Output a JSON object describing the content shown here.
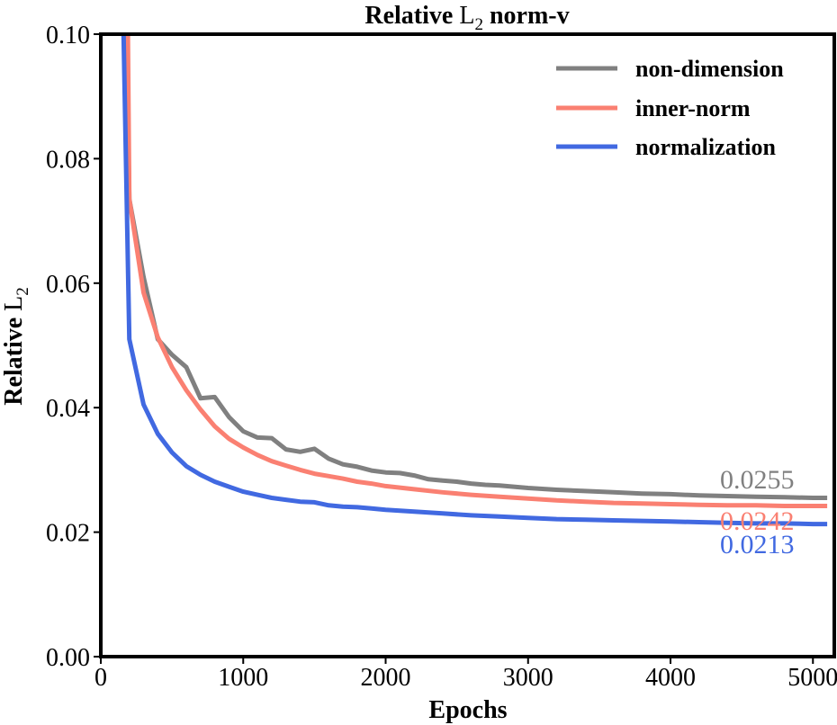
{
  "chart_data": {
    "type": "line",
    "title_prefix": "Relative ",
    "title_symbol": "L",
    "title_subscript": "2",
    "title_suffix": " norm-v",
    "xlabel": "Epochs",
    "ylabel_prefix": "Relative ",
    "ylabel_symbol": "L",
    "ylabel_subscript": "2",
    "xlim": [
      0,
      5150
    ],
    "ylim": [
      0,
      0.1
    ],
    "x_ticks": [
      0,
      1000,
      2000,
      3000,
      4000,
      5000
    ],
    "x_tick_labels": [
      "0",
      "1000",
      "2000",
      "3000",
      "4000",
      "5000"
    ],
    "y_ticks": [
      0,
      0.02,
      0.04,
      0.06,
      0.08,
      0.1
    ],
    "y_tick_labels": [
      "0.00",
      "0.02",
      "0.04",
      "0.06",
      "0.08",
      "0.10"
    ],
    "legend_position": "top-right",
    "series": [
      {
        "name": "non-dimension",
        "color": "#808080",
        "end_label": "0.0255",
        "x": [
          180,
          200,
          300,
          400,
          500,
          600,
          700,
          800,
          900,
          1000,
          1100,
          1200,
          1300,
          1400,
          1500,
          1600,
          1700,
          1800,
          1900,
          2000,
          2100,
          2200,
          2300,
          2400,
          2500,
          2600,
          2700,
          2800,
          2900,
          3000,
          3200,
          3400,
          3600,
          3800,
          4000,
          4200,
          4400,
          4600,
          4800,
          5000,
          5100
        ],
        "values": [
          0.1,
          0.0735,
          0.061,
          0.051,
          0.0485,
          0.0465,
          0.0415,
          0.0417,
          0.0385,
          0.0362,
          0.0352,
          0.0351,
          0.0333,
          0.0329,
          0.0334,
          0.0318,
          0.0309,
          0.0305,
          0.0299,
          0.0296,
          0.0295,
          0.0291,
          0.0285,
          0.0283,
          0.0281,
          0.0278,
          0.0276,
          0.0275,
          0.0273,
          0.0271,
          0.0268,
          0.0266,
          0.0264,
          0.0262,
          0.0261,
          0.0259,
          0.0258,
          0.0257,
          0.0256,
          0.0255,
          0.0255
        ]
      },
      {
        "name": "inner-norm",
        "color": "#FA8072",
        "end_label": "0.0242",
        "x": [
          190,
          200,
          300,
          400,
          500,
          600,
          700,
          800,
          900,
          1000,
          1100,
          1200,
          1300,
          1400,
          1500,
          1600,
          1700,
          1800,
          1900,
          2000,
          2200,
          2400,
          2600,
          2800,
          3000,
          3200,
          3400,
          3600,
          3800,
          4000,
          4200,
          4400,
          4600,
          4800,
          5000,
          5100
        ],
        "values": [
          0.1,
          0.0735,
          0.0585,
          0.0513,
          0.0465,
          0.0428,
          0.0397,
          0.037,
          0.035,
          0.0336,
          0.0324,
          0.0314,
          0.0307,
          0.03,
          0.0294,
          0.029,
          0.0286,
          0.0281,
          0.0278,
          0.0274,
          0.0269,
          0.0264,
          0.026,
          0.0257,
          0.0254,
          0.0251,
          0.0249,
          0.0247,
          0.0246,
          0.0245,
          0.0244,
          0.0243,
          0.0243,
          0.0242,
          0.0242,
          0.0242
        ]
      },
      {
        "name": "normalization",
        "color": "#4169E1",
        "end_label": "0.0213",
        "x": [
          160,
          200,
          300,
          400,
          500,
          600,
          700,
          800,
          900,
          1000,
          1100,
          1200,
          1300,
          1400,
          1500,
          1600,
          1700,
          1800,
          1900,
          2000,
          2200,
          2400,
          2600,
          2800,
          3000,
          3200,
          3400,
          3600,
          3800,
          4000,
          4200,
          4400,
          4600,
          4800,
          5000,
          5100
        ],
        "values": [
          0.1,
          0.051,
          0.0405,
          0.0358,
          0.0328,
          0.0306,
          0.0292,
          0.0281,
          0.0273,
          0.0265,
          0.026,
          0.0255,
          0.0252,
          0.0249,
          0.0248,
          0.0243,
          0.0241,
          0.024,
          0.0238,
          0.0236,
          0.0233,
          0.023,
          0.0227,
          0.0225,
          0.0223,
          0.0221,
          0.022,
          0.0219,
          0.0218,
          0.0217,
          0.0216,
          0.0215,
          0.0214,
          0.0214,
          0.0213,
          0.0213
        ]
      }
    ]
  }
}
